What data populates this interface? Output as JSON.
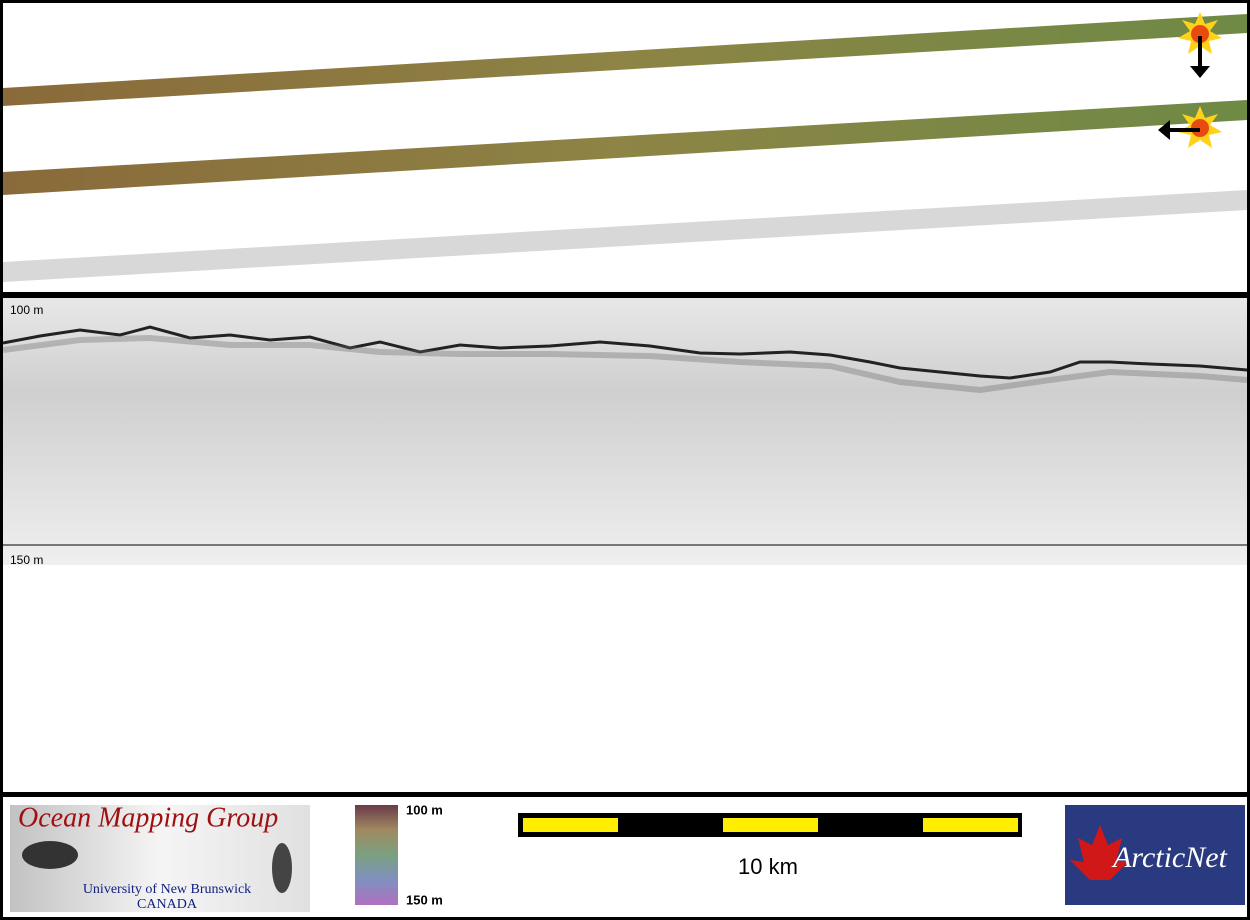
{
  "profile": {
    "top_label": "100 m",
    "bottom_label": "150 m"
  },
  "legend": {
    "top_label": "100 m",
    "bottom_label": "150 m"
  },
  "scale_bar": {
    "label": "10 km"
  },
  "logos": {
    "omg": {
      "title": "Ocean Mapping Group",
      "university": "University of New Brunswick",
      "country": "CANADA"
    },
    "arcticnet": "ArcticNet"
  }
}
